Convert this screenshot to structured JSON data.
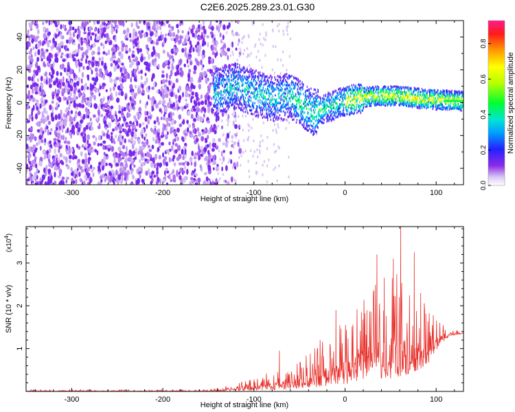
{
  "figure": {
    "title": "C2E6.2025.289.23.01.G30"
  },
  "chart_data": [
    {
      "type": "heatmap",
      "id": "spectrogram",
      "xlabel": "Height of straight line (km)",
      "ylabel": "Frequency (Hz)",
      "xlim": [
        -350,
        130
      ],
      "ylim": [
        -50,
        50
      ],
      "xticks": [
        -300,
        -200,
        -100,
        0,
        100
      ],
      "xtick_labels": [
        "-300",
        "-200",
        "-100",
        "0",
        "100"
      ],
      "yticks": [
        -40,
        -20,
        0,
        20,
        40
      ],
      "ytick_labels": [
        "-40",
        "-20",
        "0",
        "20",
        "40"
      ],
      "colorbar": {
        "label": "Normalized spectral amplitude",
        "range": [
          0,
          0.93
        ],
        "ticks": [
          0.0,
          0.2,
          0.4,
          0.6,
          0.8
        ],
        "tick_labels": [
          "0.0",
          "0.2",
          "0.4",
          "0.6",
          "0.8"
        ],
        "colormap": "rainbow"
      },
      "features": {
        "noise_region_x": [
          -350,
          -140
        ],
        "noise_frequency_span": [
          -50,
          50
        ],
        "signal_onset_x": -145,
        "signal_ridge": [
          {
            "x": -145,
            "f": 6
          },
          {
            "x": -120,
            "f": 10
          },
          {
            "x": -100,
            "f": 6
          },
          {
            "x": -80,
            "f": 2
          },
          {
            "x": -60,
            "f": 4
          },
          {
            "x": -45,
            "f": -2
          },
          {
            "x": -35,
            "f": -6
          },
          {
            "x": -20,
            "f": -3
          },
          {
            "x": 0,
            "f": 1
          },
          {
            "x": 30,
            "f": 4
          },
          {
            "x": 60,
            "f": 4
          },
          {
            "x": 90,
            "f": 2
          },
          {
            "x": 130,
            "f": 1
          }
        ]
      }
    },
    {
      "type": "line",
      "id": "snr",
      "xlabel": "Height of straight line (km)",
      "ylabel": "SNR (10 * v/v)",
      "y_scale_label": "(x10",
      "y_scale_exponent": "4",
      "xlim": [
        -350,
        130
      ],
      "ylim": [
        0,
        3.85
      ],
      "xticks": [
        -300,
        -200,
        -100,
        0,
        100
      ],
      "xtick_labels": [
        "-300",
        "-200",
        "-100",
        "0",
        "100"
      ],
      "yticks": [
        1,
        2,
        3
      ],
      "ytick_labels": [
        "1",
        "2",
        "3"
      ],
      "line_color": "#e8302a",
      "envelope": [
        {
          "x": -350,
          "lo": 0.0,
          "hi": 0.04
        },
        {
          "x": -150,
          "lo": 0.0,
          "hi": 0.04
        },
        {
          "x": -100,
          "lo": 0.02,
          "hi": 0.3
        },
        {
          "x": -75,
          "lo": 0.03,
          "hi": 0.55
        },
        {
          "x": -60,
          "lo": 0.05,
          "hi": 0.5
        },
        {
          "x": -45,
          "lo": 0.08,
          "hi": 0.8
        },
        {
          "x": -30,
          "lo": 0.1,
          "hi": 1.2
        },
        {
          "x": -10,
          "lo": 0.15,
          "hi": 1.5
        },
        {
          "x": 10,
          "lo": 0.2,
          "hi": 1.9
        },
        {
          "x": 30,
          "lo": 0.3,
          "hi": 2.4
        },
        {
          "x": 50,
          "lo": 0.3,
          "hi": 3.0
        },
        {
          "x": 70,
          "lo": 0.4,
          "hi": 2.6
        },
        {
          "x": 90,
          "lo": 0.6,
          "hi": 2.0
        },
        {
          "x": 105,
          "lo": 1.1,
          "hi": 1.7
        },
        {
          "x": 115,
          "lo": 1.3,
          "hi": 1.45
        },
        {
          "x": 130,
          "lo": 1.35,
          "hi": 1.4
        }
      ],
      "peaks": [
        {
          "x": -72,
          "y": 0.95
        },
        {
          "x": -10,
          "y": 1.9
        },
        {
          "x": 18,
          "y": 1.85
        },
        {
          "x": 35,
          "y": 3.2
        },
        {
          "x": 43,
          "y": 2.65
        },
        {
          "x": 53,
          "y": 3.1
        },
        {
          "x": 61,
          "y": 3.85
        },
        {
          "x": 76,
          "y": 3.25
        },
        {
          "x": 83,
          "y": 2.3
        }
      ]
    }
  ]
}
